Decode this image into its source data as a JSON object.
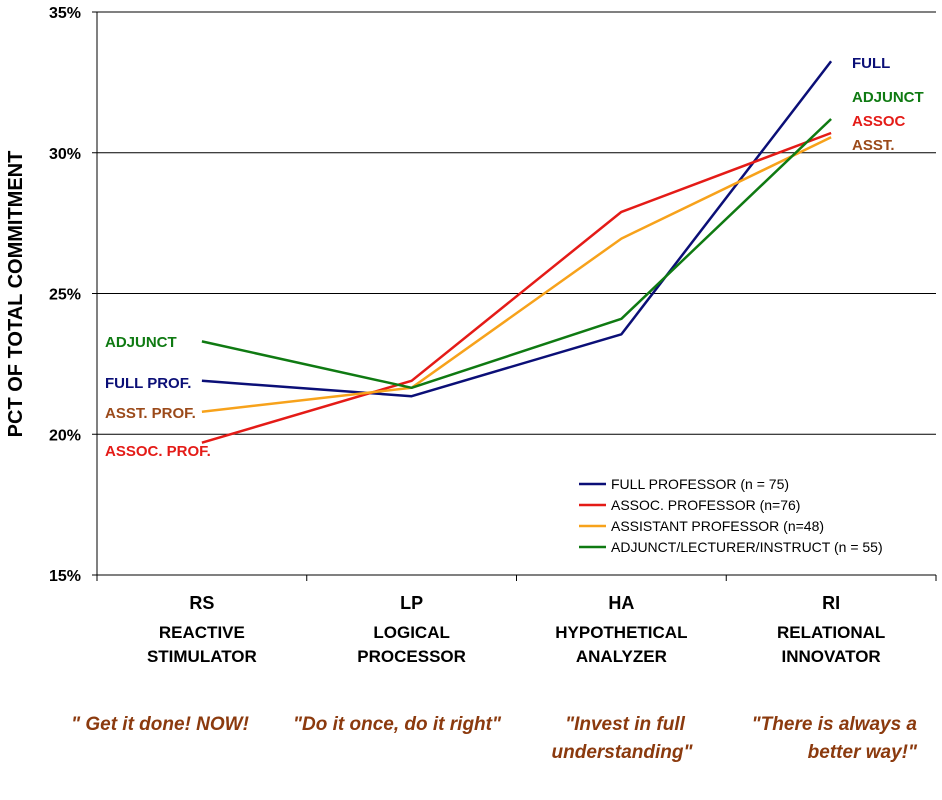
{
  "chart_data": {
    "type": "line",
    "ylabel": "PCT OF TOTAL COMMITMENT",
    "ylim": [
      15,
      35
    ],
    "yticks": [
      15,
      20,
      25,
      30,
      35
    ],
    "ytick_labels": [
      "15%",
      "20%",
      "25%",
      "30%",
      "35%"
    ],
    "grid": true,
    "legend_position": "bottom-right",
    "categories": [
      "RS",
      "LP",
      "HA",
      "RI"
    ],
    "category_names": [
      [
        "REACTIVE",
        "STIMULATOR"
      ],
      [
        "LOGICAL",
        "PROCESSOR"
      ],
      [
        "HYPOTHETICAL",
        "ANALYZER"
      ],
      [
        "RELATIONAL",
        "INNOVATOR"
      ]
    ],
    "mottos": [
      [
        "\" Get it done! NOW!"
      ],
      [
        "\"Do it once, do it right\""
      ],
      [
        "\"Invest in full",
        "understanding\""
      ],
      [
        "\"There is always a",
        "better way!\""
      ]
    ],
    "series": [
      {
        "name": "FULL PROFESSOR (n = 75)",
        "color": "#0b0f77",
        "values": [
          21.9,
          21.35,
          23.55,
          33.25
        ],
        "start_label": "FULL PROF.",
        "end_label": "FULL"
      },
      {
        "name": "ASSOC. PROFESSOR (n=76)",
        "color": "#e41b17",
        "values": [
          19.7,
          21.9,
          27.9,
          30.7
        ],
        "start_label": "ASSOC. PROF.",
        "end_label": "ASSOC"
      },
      {
        "name": "ASSISTANT PROFESSOR (n=48)",
        "color": "#f7a21b",
        "values": [
          20.8,
          21.65,
          26.95,
          30.55
        ],
        "start_label": "ASST. PROF.",
        "end_label": "ASST."
      },
      {
        "name": "ADJUNCT/LECTURER/INSTRUCT (n = 55)",
        "color": "#0f7a12",
        "values": [
          23.3,
          21.65,
          24.1,
          31.2
        ],
        "start_label": "ADJUNCT",
        "end_label": "ADJUNCT"
      }
    ],
    "label_colors": {
      "FULL PROF.": "#0b0f77",
      "ASST. PROF.": "#9b4a1a",
      "ASSOC. PROF.": "#e41b17",
      "ADJUNCT": "#0f7a12",
      "FULL": "#0b0f77",
      "ASSOC": "#e41b17",
      "ASST.": "#9b4a1a"
    }
  }
}
